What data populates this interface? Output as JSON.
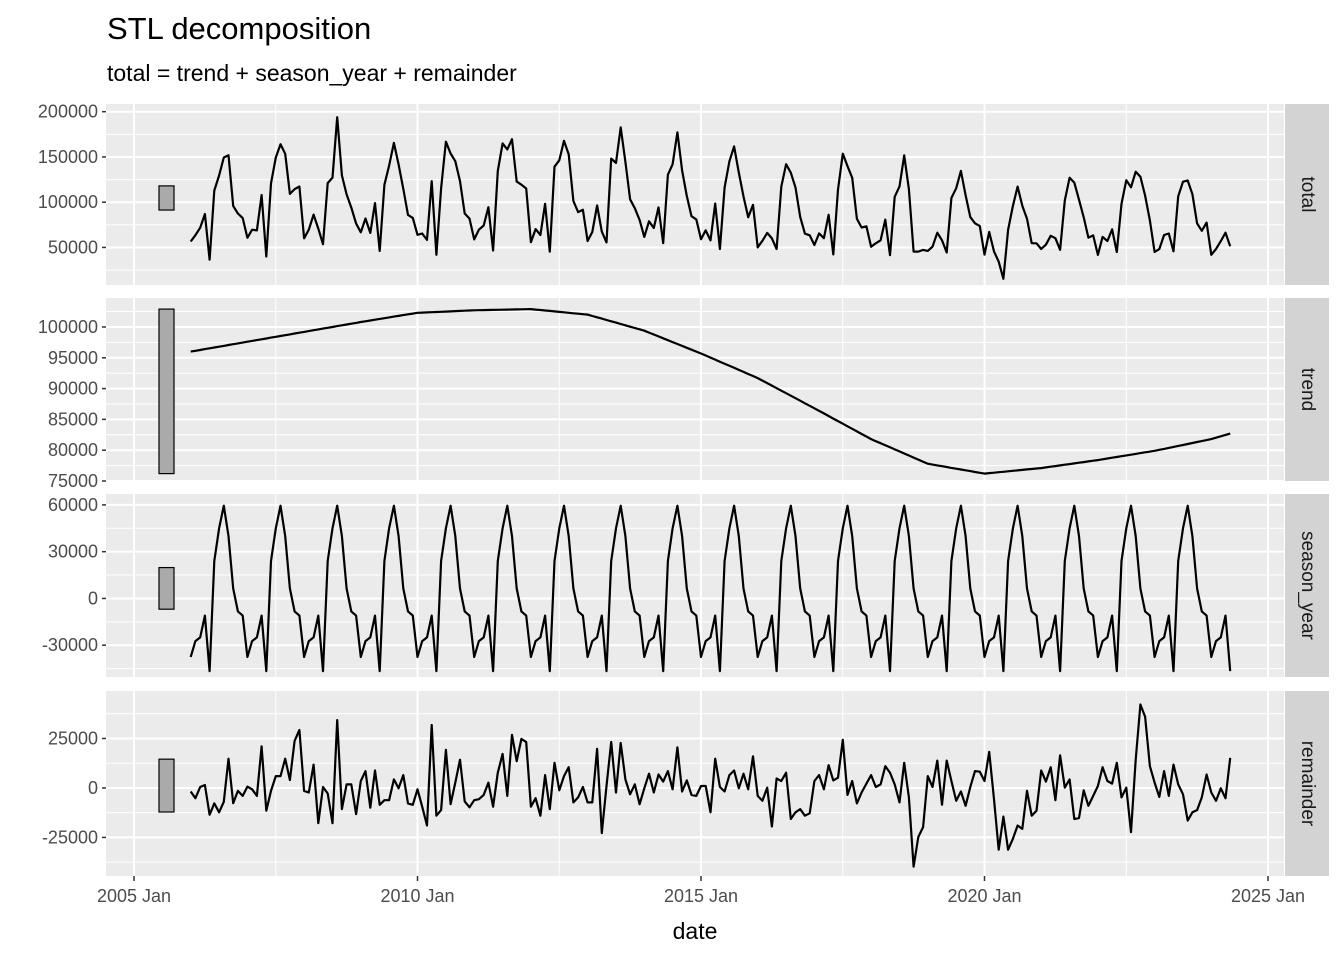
{
  "chart_data": {
    "type": "line",
    "title": "STL decomposition",
    "subtitle": "total = trend + season_year + remainder",
    "xlabel": "date",
    "x_ticks": [
      "2005 Jan",
      "2010 Jan",
      "2015 Jan",
      "2020 Jan",
      "2025 Jan"
    ],
    "x_tick_years": [
      2005,
      2010,
      2015,
      2020,
      2025
    ],
    "x_range": [
      2005.0,
      2025.3
    ],
    "start": {
      "year": 2006,
      "month": 1
    },
    "n_months": 221,
    "panels": [
      {
        "name": "total",
        "strip": "total",
        "ylim": [
          8500,
          208500
        ],
        "ticks": [
          50000,
          100000,
          150000,
          200000
        ],
        "tick_labels": [
          "50000",
          "100000",
          "150000",
          "200000"
        ]
      },
      {
        "name": "trend",
        "strip": "trend",
        "ylim": [
          75000,
          104700
        ],
        "ticks": [
          75000,
          80000,
          85000,
          90000,
          95000,
          100000
        ],
        "tick_labels": [
          "75000",
          "80000",
          "85000",
          "90000",
          "95000",
          "100000"
        ]
      },
      {
        "name": "season_year",
        "strip": "season_year",
        "ylim": [
          -50400,
          67000
        ],
        "ticks": [
          -30000,
          0,
          30000,
          60000
        ],
        "tick_labels": [
          "-30000",
          "0",
          "30000",
          "60000"
        ]
      },
      {
        "name": "remainder",
        "strip": "remainder",
        "ylim": [
          -44500,
          49000
        ],
        "ticks": [
          -25000,
          0,
          25000
        ],
        "tick_labels": [
          "-25000",
          "0",
          "25000"
        ]
      }
    ],
    "trend_knots": {
      "t": [
        2006,
        2007,
        2008,
        2009,
        2010,
        2011,
        2012,
        2013,
        2014,
        2015,
        2016,
        2017,
        2018,
        2019,
        2020,
        2021,
        2022,
        2023,
        2024,
        2024.333
      ],
      "value": [
        96000,
        97600,
        99200,
        100800,
        102300,
        102700,
        102900,
        102000,
        99400,
        95700,
        91700,
        86800,
        81800,
        77800,
        76200,
        77100,
        78400,
        79900,
        81800,
        82700
      ]
    },
    "season_year_pattern": [
      -37600,
      -27400,
      -25000,
      -11000,
      -46600,
      24000,
      45000,
      59500,
      40000,
      6400,
      -8300,
      -11000
    ],
    "remainder": [
      -1800,
      -5200,
      500,
      1500,
      -13500,
      -7800,
      -12300,
      -7000,
      14800,
      -7700,
      -1500,
      -4000,
      700,
      -700,
      -4000,
      21000,
      -11500,
      -1500,
      6000,
      6000,
      14800,
      4000,
      23800,
      29300,
      -1500,
      -2300,
      11800,
      -17800,
      500,
      -2800,
      -17800,
      34300,
      -10700,
      1800,
      1800,
      -13200,
      3500,
      8500,
      -10000,
      8800,
      -8500,
      -6200,
      -6200,
      4300,
      -200,
      6500,
      -7800,
      -8500,
      -700,
      -9500,
      -19000,
      31800,
      -14000,
      -11200,
      19300,
      -8200,
      2700,
      14300,
      -6800,
      -9800,
      -6200,
      -5700,
      -3500,
      2700,
      -9500,
      7700,
      17200,
      -4000,
      26800,
      13500,
      24800,
      23200,
      -9500,
      -5200,
      -14000,
      6500,
      -10700,
      12700,
      -1200,
      6000,
      10500,
      -7300,
      -4800,
      500,
      -7300,
      -7300,
      19800,
      -22800,
      1000,
      23200,
      -2300,
      22700,
      4300,
      -3200,
      1800,
      -8200,
      -200,
      7200,
      -2300,
      6800,
      3200,
      8500,
      -700,
      20500,
      -1800,
      3800,
      -3500,
      -4000,
      1000,
      1000,
      -12300,
      14800,
      500,
      -1800,
      6500,
      8800,
      -200,
      7200,
      -700,
      16000,
      -4000,
      -6500,
      200,
      -19500,
      4800,
      3500,
      7700,
      -15700,
      -12300,
      -10700,
      -14000,
      -12800,
      3500,
      6500,
      -700,
      11500,
      3800,
      5200,
      24300,
      -3500,
      3500,
      -7800,
      -2300,
      2200,
      6500,
      500,
      1800,
      11000,
      7700,
      1800,
      -7300,
      12700,
      -4800,
      -39800,
      -24800,
      -19800,
      6000,
      500,
      13800,
      -8500,
      13800,
      3500,
      -6500,
      -1800,
      -9000,
      500,
      8500,
      8200,
      3500,
      18200,
      -5700,
      -31200,
      -14500,
      -31200,
      -25700,
      -19000,
      -20700,
      -1500,
      -14000,
      -11500,
      8800,
      3200,
      10500,
      -6200,
      16500,
      200,
      4300,
      -15700,
      -15200,
      -1200,
      -9000,
      -4000,
      1000,
      10500,
      3500,
      2200,
      12700,
      -4800,
      200,
      -22300,
      14300,
      42200,
      36000,
      11000,
      2700,
      -4500,
      8500,
      -4000,
      11800,
      1800,
      -3200,
      -16500,
      -12300,
      -11200,
      -4800,
      6800,
      -2300,
      -6500,
      -200,
      -5200,
      15200
    ],
    "colors": {
      "panel_bg": "#EBEBEB",
      "strip_bg": "#D3D3D3",
      "grid": "#FFFFFF",
      "line": "#000000",
      "range_bar": "#AAAAAA"
    }
  }
}
